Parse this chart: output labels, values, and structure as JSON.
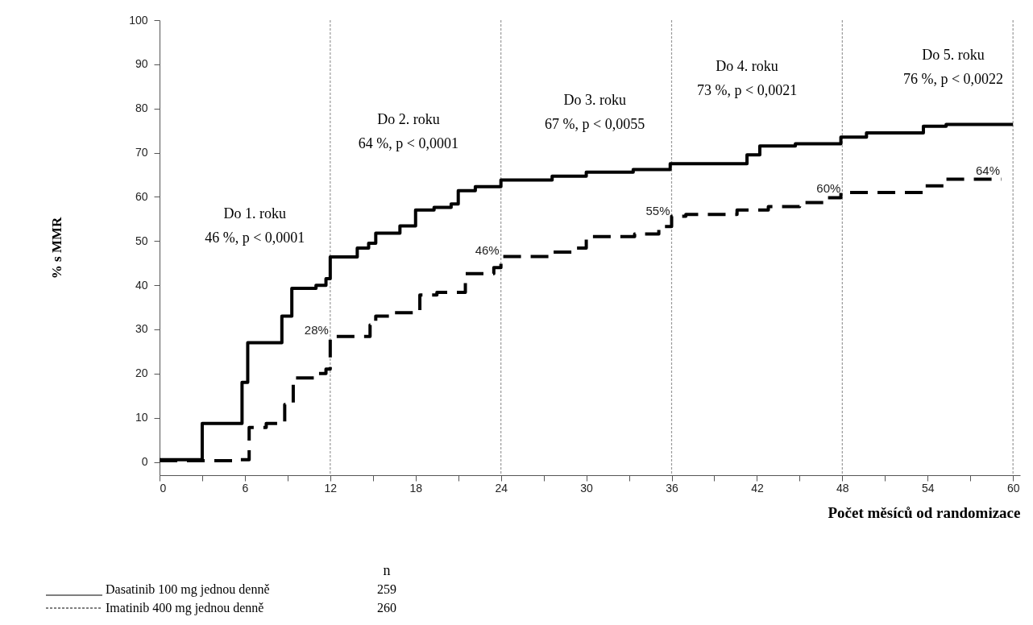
{
  "chart_data": {
    "type": "step",
    "xlabel": "Počet měsíců od randomizace",
    "ylabel": "% s MMR",
    "legend_title": "n",
    "legend": "bottom left",
    "xlim": [
      0,
      60.5
    ],
    "ylim": [
      -3,
      100
    ],
    "xticks": [
      0,
      {
        "value": 3,
        "label": null
      },
      6,
      {
        "value": 9,
        "label": null
      },
      12,
      {
        "value": 15,
        "label": null
      },
      18,
      {
        "value": 21,
        "label": null
      },
      24,
      {
        "value": 27,
        "label": null
      },
      30,
      {
        "value": 33,
        "label": null
      },
      36,
      {
        "value": 39,
        "label": null
      },
      42,
      {
        "value": 45,
        "label": null
      },
      48,
      {
        "value": 51,
        "label": null
      },
      54,
      {
        "value": 57,
        "label": null
      },
      60
    ],
    "yticks": [
      0,
      10,
      20,
      30,
      40,
      50,
      60,
      70,
      80,
      90,
      100
    ],
    "series": [
      {
        "name": "Dasatinib 100 mg jednou denně",
        "color": "#000000",
        "line_style": "solid",
        "x": [
          0,
          3,
          5.8,
          6.2,
          8.6,
          9.3,
          11,
          11.7,
          12,
          13.9,
          14.7,
          15.2,
          16.9,
          18,
          19.3,
          20.5,
          21,
          22.2,
          24,
          27.6,
          30,
          33.3,
          35.9,
          41.3,
          42.2,
          44.7,
          47.9,
          49.7,
          53.7,
          55.3,
          60
        ],
        "values": [
          0.5,
          8.7,
          18,
          27,
          33,
          39.3,
          40,
          41.5,
          46.4,
          48.4,
          49.5,
          51.8,
          53.4,
          57,
          57.6,
          58.4,
          61.4,
          62.3,
          63.8,
          64.7,
          65.6,
          66.2,
          67.5,
          69.5,
          71.5,
          72,
          73.5,
          74.5,
          76,
          76.4,
          76.4
        ]
      },
      {
        "name": "Imatinib 400 mg jednou denně",
        "color": "#000000",
        "line_style": "dashed",
        "x": [
          0,
          5.4,
          6.3,
          7.5,
          8.8,
          9.4,
          11,
          11.7,
          12,
          14.8,
          15.2,
          16.5,
          18.3,
          19.5,
          21.5,
          23.5,
          24,
          27.6,
          29.3,
          30,
          33.4,
          35.1,
          36,
          37,
          40.6,
          42.8,
          45,
          46.9,
          47.9,
          53.7,
          55.3,
          59.2
        ],
        "values": [
          0.3,
          0.5,
          7.8,
          8.7,
          13,
          19,
          20,
          21,
          28.4,
          31,
          33,
          33.8,
          37.8,
          38.4,
          42.6,
          44,
          46.5,
          47.5,
          48.4,
          51,
          51.6,
          53.3,
          55.6,
          56,
          57,
          57.8,
          58.7,
          59.8,
          61,
          62.5,
          64,
          64
        ]
      }
    ],
    "ref_lines": [
      {
        "axis": "x",
        "value": 12,
        "color": "#999999",
        "line_style": "dotted"
      },
      {
        "axis": "x",
        "value": 24,
        "color": "#999999",
        "line_style": "dotted"
      },
      {
        "axis": "x",
        "value": 36,
        "color": "#999999",
        "line_style": "dotted"
      },
      {
        "axis": "x",
        "value": 48,
        "color": "#999999",
        "line_style": "dotted"
      },
      {
        "axis": "x",
        "value": 60,
        "color": "#999999",
        "line_style": "dotted"
      }
    ],
    "annotations": [
      "Do 1. roku\n46 %, p < 0,0001",
      "Do 2. roku\n64 %, p < 0,0001",
      "Do 3. roku\n67 %, p < 0,0055",
      "Do 4. roku\n73 %, p < 0,0021",
      "Do 5. roku\n76 %, p < 0,0022",
      {
        "text": "28%",
        "x": 12,
        "y": 28
      },
      {
        "text": "46%",
        "x": 24,
        "y": 46
      },
      {
        "text": "55%",
        "x": 36,
        "y": 55
      },
      {
        "text": "60%",
        "x": 48,
        "y": 60
      },
      {
        "text": "64%",
        "x": 59.2,
        "y": 64
      },
      "259",
      "260"
    ]
  }
}
